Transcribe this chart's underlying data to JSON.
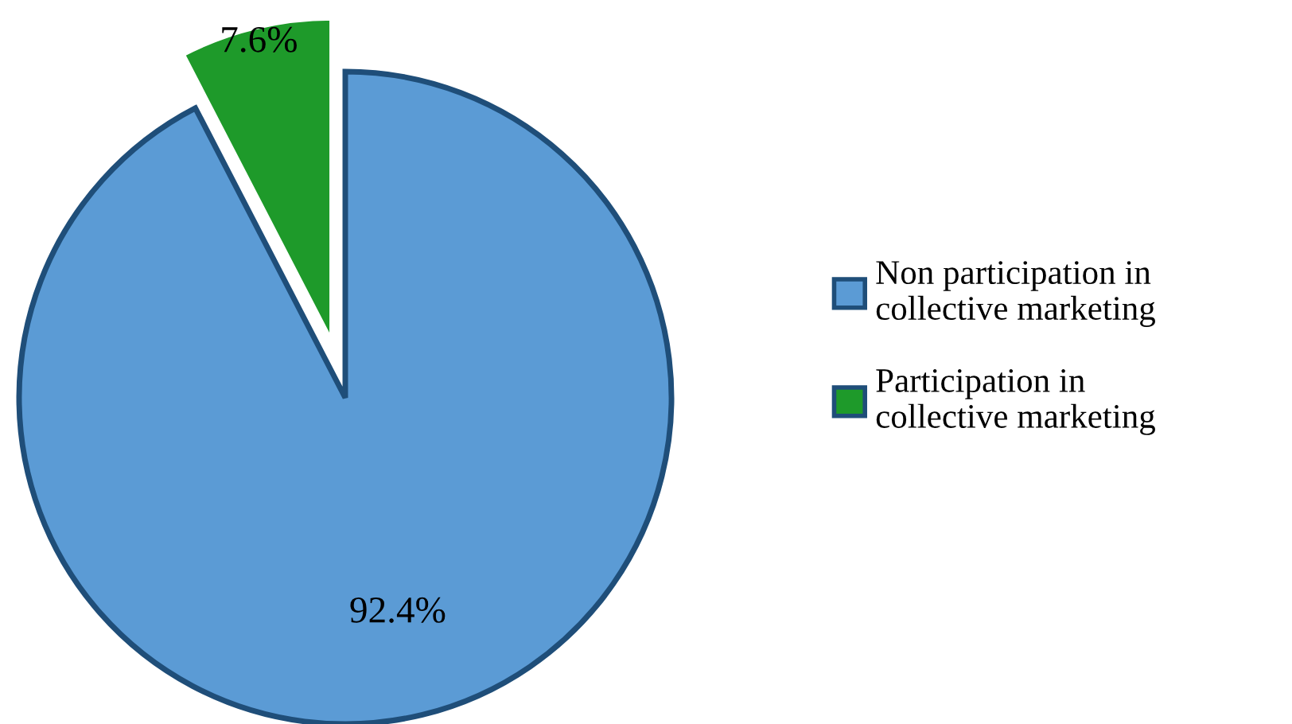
{
  "chart_data": {
    "type": "pie",
    "categories": [
      "Non participation in\ncollective marketing",
      "Participation in\ncollective marketing"
    ],
    "values": [
      92.4,
      7.6
    ],
    "colors": [
      "#5b9bd5",
      "#1e9a2a"
    ],
    "value_labels": [
      "92.4%",
      "7.6%"
    ],
    "legend": "right"
  }
}
